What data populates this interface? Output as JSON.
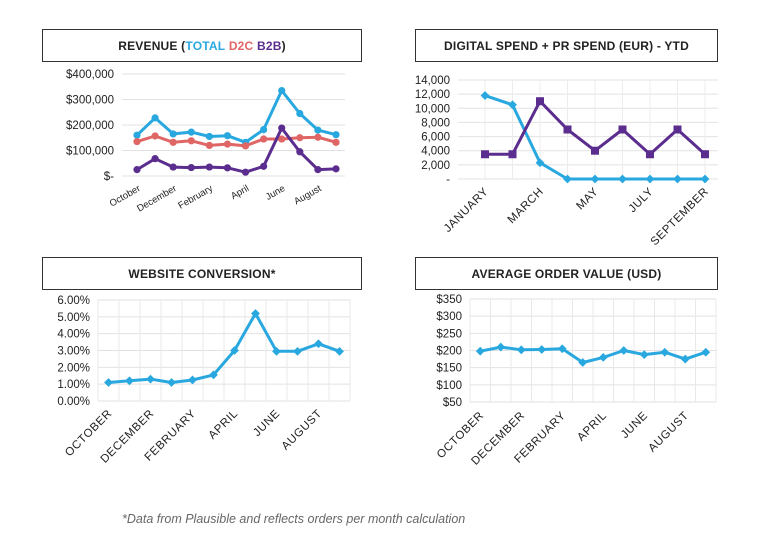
{
  "titles": {
    "revenue_prefix": "REVENUE (",
    "revenue_total": "TOTAL",
    "revenue_d2c": "D2C",
    "revenue_b2b": "B2B",
    "revenue_suffix": ")",
    "digital": "DIGITAL SPEND + PR SPEND (EUR) - YTD",
    "conversion": "WEBSITE CONVERSION*",
    "aov": "AVERAGE ORDER VALUE (USD)"
  },
  "footnote": "*Data from Plausible and reflects orders per month calculation",
  "colors": {
    "total": "#29a8e0",
    "d2c": "#e06666",
    "b2b": "#5b2d8e",
    "grid": "#dddddd"
  },
  "chart_data": [
    {
      "id": "revenue",
      "type": "line",
      "title": "REVENUE (TOTAL D2C B2B)",
      "categories": [
        "October",
        "November",
        "December",
        "January",
        "February",
        "March",
        "April",
        "May",
        "June",
        "July",
        "August",
        "September"
      ],
      "x_tick_labels": [
        "October",
        "December",
        "February",
        "April",
        "June",
        "August"
      ],
      "y_tick_labels": [
        "$400,000",
        "$300,000",
        "$200,000",
        "$100,000",
        "$-"
      ],
      "ylim": [
        0,
        400000
      ],
      "grid": true,
      "series": [
        {
          "name": "TOTAL",
          "color": "#29a8e0",
          "marker": "circle",
          "values": [
            160000,
            228000,
            165000,
            172000,
            155000,
            158000,
            132000,
            182000,
            335000,
            245000,
            180000,
            162000
          ]
        },
        {
          "name": "D2C",
          "color": "#e06666",
          "marker": "circle",
          "values": [
            135000,
            157000,
            132000,
            138000,
            120000,
            125000,
            118000,
            145000,
            145000,
            150000,
            152000,
            132000
          ]
        },
        {
          "name": "B2B",
          "color": "#5b2d8e",
          "marker": "circle",
          "values": [
            25000,
            68000,
            35000,
            33000,
            35000,
            32000,
            15000,
            38000,
            188000,
            95000,
            25000,
            28000
          ]
        }
      ]
    },
    {
      "id": "digital",
      "type": "line",
      "title": "DIGITAL SPEND + PR SPEND (EUR) - YTD",
      "categories": [
        "JANUARY",
        "FEBRUARY",
        "MARCH",
        "APRIL",
        "MAY",
        "JUNE",
        "JULY",
        "AUGUST",
        "SEPTEMBER"
      ],
      "x_tick_labels": [
        "JANUARY",
        "MARCH",
        "MAY",
        "JULY",
        "SEPTEMBER"
      ],
      "y_tick_labels": [
        "14,000",
        "12,000",
        "10,000",
        "8,000",
        "6,000",
        "4,000",
        "2,000",
        "-"
      ],
      "ylim": [
        0,
        14000
      ],
      "grid": true,
      "series": [
        {
          "color": "#29a8e0",
          "marker": "diamond",
          "values": [
            11800,
            10500,
            2300,
            0,
            0,
            0,
            0,
            0,
            0
          ]
        },
        {
          "color": "#5b2d8e",
          "marker": "square",
          "values": [
            3500,
            3500,
            11000,
            7000,
            4000,
            7000,
            3500,
            7000,
            3500
          ]
        }
      ]
    },
    {
      "id": "conversion",
      "type": "line",
      "title": "WEBSITE CONVERSION*",
      "categories": [
        "OCTOBER",
        "NOVEMBER",
        "DECEMBER",
        "JANUARY",
        "FEBRUARY",
        "MARCH",
        "APRIL",
        "MAY",
        "JUNE",
        "JULY",
        "AUGUST",
        "SEPTEMBER"
      ],
      "x_tick_labels": [
        "OCTOBER",
        "DECEMBER",
        "FEBRUARY",
        "APRIL",
        "JUNE",
        "AUGUST"
      ],
      "y_tick_labels": [
        "6.00%",
        "5.00%",
        "4.00%",
        "3.00%",
        "2.00%",
        "1.00%",
        "0.00%"
      ],
      "ylim": [
        0,
        6
      ],
      "grid": true,
      "series": [
        {
          "color": "#29a8e0",
          "marker": "diamond",
          "values": [
            1.1,
            1.2,
            1.3,
            1.1,
            1.25,
            1.55,
            3.0,
            5.2,
            2.95,
            2.95,
            3.4,
            2.95
          ]
        }
      ]
    },
    {
      "id": "aov",
      "type": "line",
      "title": "AVERAGE ORDER VALUE (USD)",
      "categories": [
        "OCTOBER",
        "NOVEMBER",
        "DECEMBER",
        "JANUARY",
        "FEBRUARY",
        "MARCH",
        "APRIL",
        "MAY",
        "JUNE",
        "JULY",
        "AUGUST",
        "SEPTEMBER"
      ],
      "x_tick_labels": [
        "OCTOBER",
        "DECEMBER",
        "FEBRUARY",
        "APRIL",
        "JUNE",
        "AUGUST"
      ],
      "y_tick_labels": [
        "$350",
        "$300",
        "$250",
        "$200",
        "$150",
        "$100",
        "$50"
      ],
      "ylim": [
        50,
        350
      ],
      "grid": true,
      "series": [
        {
          "color": "#29a8e0",
          "marker": "diamond",
          "values": [
            198,
            210,
            202,
            203,
            205,
            165,
            180,
            200,
            188,
            195,
            175,
            195
          ]
        }
      ]
    }
  ]
}
